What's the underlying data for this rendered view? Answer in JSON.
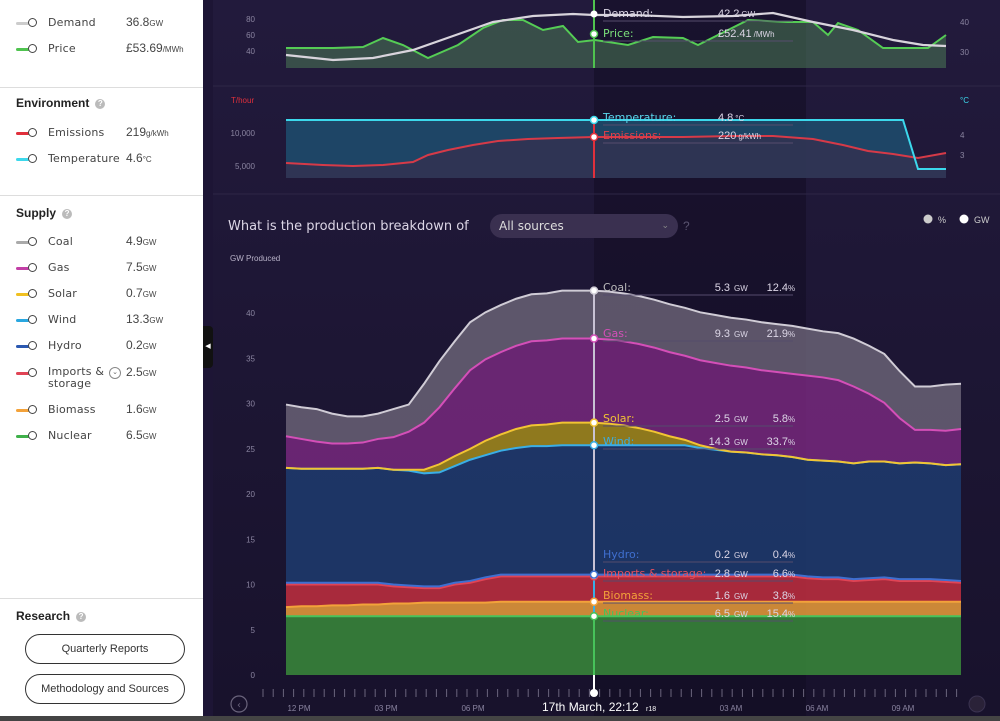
{
  "sidebar": {
    "market": [
      {
        "label": "Demand",
        "value": "36.8",
        "unit": "GW",
        "color": "#cccccc"
      },
      {
        "label": "Price",
        "value": "£53.69",
        "unit": "/MWh",
        "color": "#4fc34f"
      }
    ],
    "environment": {
      "heading": "Environment",
      "items": [
        {
          "label": "Emissions",
          "value": "219",
          "unit": "g/kWh",
          "color": "#e0303c"
        },
        {
          "label": "Temperature",
          "value": "4.6",
          "unit": "°C",
          "color": "#3cd8ec"
        }
      ]
    },
    "supply": {
      "heading": "Supply",
      "items": [
        {
          "label": "Coal",
          "value": "4.9",
          "unit": "GW",
          "color": "#aaaaaa"
        },
        {
          "label": "Gas",
          "value": "7.5",
          "unit": "GW",
          "color": "#c23fa6"
        },
        {
          "label": "Solar",
          "value": "0.7",
          "unit": "GW",
          "color": "#f0c020"
        },
        {
          "label": "Wind",
          "value": "13.3",
          "unit": "GW",
          "color": "#2aa7e0"
        },
        {
          "label": "Hydro",
          "value": "0.2",
          "unit": "GW",
          "color": "#2b58b0"
        },
        {
          "label": "Imports &",
          "label2": "storage",
          "value": "2.5",
          "unit": "GW",
          "color": "#e04455"
        },
        {
          "label": "Biomass",
          "value": "1.6",
          "unit": "GW",
          "color": "#f3a23a"
        },
        {
          "label": "Nuclear",
          "value": "6.5",
          "unit": "GW",
          "color": "#3fb04a"
        }
      ]
    },
    "research": {
      "heading": "Research",
      "buttons": [
        "Quarterly Reports",
        "Methodology and Sources"
      ]
    }
  },
  "top_panel": {
    "y_ticks": [
      "80",
      "60",
      "40"
    ],
    "right_ticks": [
      "40",
      "30"
    ],
    "tooltip": [
      {
        "label": "Demand:",
        "value": "42.2",
        "unit": "GW",
        "color": "#ffffff"
      },
      {
        "label": "Price:",
        "value": "£52.41",
        "unit": "/MWh",
        "color": "#7be07b"
      }
    ]
  },
  "env_panel": {
    "left_unit": "T/hour",
    "right_unit": "°C",
    "y_ticks": [
      "10,000",
      "5,000"
    ],
    "right_ticks": [
      "4",
      "3"
    ],
    "tooltip": [
      {
        "label": "Temperature:",
        "value": "4.8",
        "unit": "°C",
        "color": "#5ad6ec"
      },
      {
        "label": "Emissions:",
        "value": "220",
        "unit": "g/kWh",
        "color": "#e0404a"
      }
    ]
  },
  "production": {
    "question": "What is the production breakdown of",
    "selector": "All sources",
    "help": "?",
    "toggle_percent": "%",
    "toggle_gw": "GW",
    "y_axis_title": "GW Produced",
    "tooltip": [
      {
        "label": "Coal:",
        "gw": "5.3",
        "pct": "12.4",
        "color": "#bbbbbb"
      },
      {
        "label": "Gas:",
        "gw": "9.3",
        "pct": "21.9",
        "color": "#d44fb8"
      },
      {
        "label": "Solar:",
        "gw": "2.5",
        "pct": "5.8",
        "color": "#f2c433"
      },
      {
        "label": "Wind:",
        "gw": "14.3",
        "pct": "33.7",
        "color": "#3aaee6"
      },
      {
        "label": "Hydro:",
        "gw": "0.2",
        "pct": "0.4",
        "color": "#3f6fd0"
      },
      {
        "label": "Imports & storage:",
        "gw": "2.8",
        "pct": "6.6",
        "color": "#e6505e"
      },
      {
        "label": "Biomass:",
        "gw": "1.6",
        "pct": "3.8",
        "color": "#f3a23a"
      },
      {
        "label": "Nuclear:",
        "gw": "6.5",
        "pct": "15.4",
        "color": "#47c25a"
      }
    ],
    "unit_gw": "GW",
    "unit_pct": "%"
  },
  "timeline": {
    "labels": [
      "12 PM",
      "03 PM",
      "06 PM",
      "03 AM",
      "06 AM",
      "09 AM"
    ],
    "current": "17th March, 22:12",
    "current_suffix": "r18"
  },
  "chart_data": {
    "type": "area",
    "title": "",
    "ylabel": "GW Produced",
    "xlabel": "",
    "ylim": [
      0,
      45
    ],
    "y_ticks": [
      0,
      5,
      10,
      15,
      20,
      25,
      30,
      35,
      40
    ],
    "x_labels": [
      "12 PM",
      "03 PM",
      "06 PM",
      "03 AM",
      "06 AM",
      "09 AM"
    ],
    "stacked": true,
    "current_time": "17th March, 22:12",
    "series": [
      {
        "name": "Nuclear",
        "color": "#3a8f3a",
        "values": [
          6.5,
          6.5,
          6.5,
          6.5,
          6.5,
          6.5,
          6.5,
          6.5,
          6.5,
          6.5,
          6.5,
          6.5,
          6.5,
          6.5,
          6.5,
          6.5,
          6.5,
          6.5,
          6.5,
          6.5,
          6.5,
          6.5,
          6.5,
          6.5,
          6.5,
          6.5,
          6.5,
          6.5,
          6.5,
          6.5,
          6.5,
          6.5,
          6.5,
          6.5,
          6.5,
          6.5,
          6.5,
          6.5,
          6.5,
          6.5,
          6.5,
          6.5,
          6.5,
          6.5,
          6.5
        ]
      },
      {
        "name": "Biomass",
        "color": "#f3a23a",
        "values": [
          1.0,
          1.1,
          1.1,
          1.2,
          1.2,
          1.3,
          1.3,
          1.4,
          1.4,
          1.5,
          1.5,
          1.5,
          1.5,
          1.5,
          1.6,
          1.6,
          1.6,
          1.6,
          1.6,
          1.6,
          1.6,
          1.6,
          1.6,
          1.6,
          1.6,
          1.6,
          1.6,
          1.6,
          1.6,
          1.6,
          1.6,
          1.6,
          1.6,
          1.6,
          1.6,
          1.6,
          1.6,
          1.6,
          1.6,
          1.6,
          1.6,
          1.6,
          1.6,
          1.6,
          1.6
        ]
      },
      {
        "name": "Imports & storage",
        "color": "#c83040",
        "values": [
          2.5,
          2.4,
          2.4,
          2.3,
          2.3,
          2.2,
          2.2,
          1.9,
          1.8,
          1.6,
          1.6,
          2.0,
          2.2,
          2.6,
          2.8,
          2.8,
          2.8,
          2.8,
          2.8,
          2.8,
          2.8,
          2.8,
          2.8,
          2.8,
          2.8,
          2.8,
          2.8,
          2.8,
          2.8,
          2.8,
          2.8,
          2.8,
          2.8,
          2.8,
          2.6,
          2.5,
          2.5,
          2.3,
          2.4,
          2.5,
          2.3,
          2.3,
          2.3,
          2.2,
          2.1
        ]
      },
      {
        "name": "Hydro",
        "color": "#2b58b0",
        "values": [
          0.2,
          0.2,
          0.2,
          0.2,
          0.2,
          0.2,
          0.2,
          0.2,
          0.2,
          0.2,
          0.2,
          0.2,
          0.2,
          0.2,
          0.2,
          0.2,
          0.2,
          0.2,
          0.2,
          0.2,
          0.2,
          0.2,
          0.2,
          0.2,
          0.2,
          0.2,
          0.2,
          0.2,
          0.2,
          0.2,
          0.2,
          0.2,
          0.2,
          0.2,
          0.2,
          0.2,
          0.2,
          0.2,
          0.2,
          0.2,
          0.2,
          0.2,
          0.2,
          0.2,
          0.2
        ]
      },
      {
        "name": "Wind",
        "color": "#1e3d72",
        "values": [
          12.7,
          12.6,
          12.6,
          12.6,
          12.6,
          12.6,
          12.7,
          12.7,
          12.7,
          12.5,
          12.6,
          12.9,
          13.4,
          13.5,
          13.7,
          14.0,
          14.2,
          14.2,
          14.3,
          14.3,
          14.3,
          14.3,
          14.3,
          14.3,
          14.3,
          14.3,
          14.3,
          14.0,
          13.8,
          13.6,
          13.5,
          13.3,
          13.2,
          13.0,
          12.9,
          12.9,
          12.8,
          12.8,
          12.9,
          12.8,
          12.8,
          12.9,
          12.8,
          12.7,
          12.9
        ]
      },
      {
        "name": "Solar",
        "color": "#a8901a",
        "values": [
          0.0,
          0.0,
          0.0,
          0.0,
          0.0,
          0.0,
          0.0,
          0.0,
          0.1,
          0.4,
          0.9,
          1.1,
          1.2,
          1.6,
          1.8,
          2.1,
          2.3,
          2.4,
          2.5,
          2.5,
          2.5,
          2.4,
          2.2,
          1.9,
          1.5,
          1.0,
          0.6,
          0.3,
          0.1,
          0.0,
          0.0,
          0.0,
          0.0,
          0.0,
          0.0,
          0.0,
          0.0,
          0.0,
          0.0,
          0.0,
          0.0,
          0.0,
          0.0,
          0.0,
          0.0
        ]
      },
      {
        "name": "Gas",
        "color": "#7a2a80",
        "values": [
          3.5,
          3.3,
          3.0,
          2.8,
          2.8,
          2.9,
          3.2,
          3.6,
          4.2,
          5.2,
          6.3,
          7.5,
          8.7,
          9.0,
          9.1,
          9.2,
          9.3,
          9.3,
          9.3,
          9.3,
          9.3,
          9.3,
          9.3,
          9.3,
          9.3,
          9.3,
          9.3,
          9.4,
          9.5,
          9.5,
          9.4,
          9.3,
          9.2,
          9.2,
          9.3,
          9.2,
          9.0,
          8.5,
          7.5,
          6.5,
          5.0,
          3.6,
          3.7,
          3.8,
          3.9
        ]
      },
      {
        "name": "Coal",
        "color": "#6b6478",
        "values": [
          3.5,
          3.5,
          3.6,
          3.3,
          3.0,
          2.9,
          2.8,
          3.1,
          3.0,
          4.3,
          5.1,
          5.2,
          5.3,
          5.2,
          5.2,
          5.2,
          5.2,
          5.2,
          5.3,
          5.3,
          5.3,
          5.3,
          5.3,
          5.3,
          5.3,
          5.3,
          5.3,
          5.3,
          5.3,
          5.3,
          5.3,
          5.3,
          5.3,
          5.3,
          5.2,
          5.1,
          5.2,
          5.3,
          5.3,
          5.4,
          5.2,
          4.8,
          4.8,
          5.1,
          5.0
        ]
      }
    ]
  }
}
